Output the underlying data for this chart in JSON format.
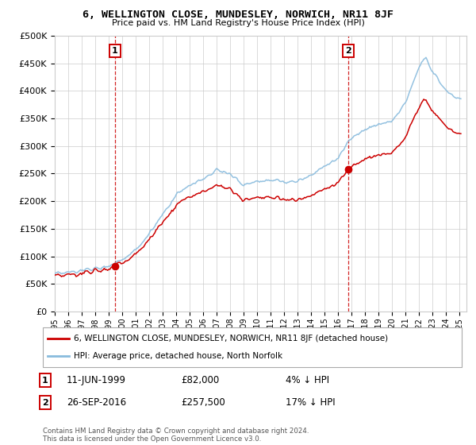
{
  "title": "6, WELLINGTON CLOSE, MUNDESLEY, NORWICH, NR11 8JF",
  "subtitle": "Price paid vs. HM Land Registry's House Price Index (HPI)",
  "ylabel_ticks": [
    "£0",
    "£50K",
    "£100K",
    "£150K",
    "£200K",
    "£250K",
    "£300K",
    "£350K",
    "£400K",
    "£450K",
    "£500K"
  ],
  "ylim": [
    0,
    500000
  ],
  "xlim_start": 1995.0,
  "xlim_end": 2025.5,
  "legend_line1": "6, WELLINGTON CLOSE, MUNDESLEY, NORWICH, NR11 8JF (detached house)",
  "legend_line2": "HPI: Average price, detached house, North Norfolk",
  "annotation1_label": "1",
  "annotation1_date": "11-JUN-1999",
  "annotation1_price": "£82,000",
  "annotation1_hpi": "4% ↓ HPI",
  "annotation2_label": "2",
  "annotation2_date": "26-SEP-2016",
  "annotation2_price": "£257,500",
  "annotation2_hpi": "17% ↓ HPI",
  "footer": "Contains HM Land Registry data © Crown copyright and database right 2024.\nThis data is licensed under the Open Government Licence v3.0.",
  "sale_color": "#cc0000",
  "hpi_color": "#88bbdd",
  "sale_marker_color": "#cc0000",
  "dashed_line_color": "#cc0000",
  "background_color": "#ffffff",
  "grid_color": "#cccccc",
  "sale1_x": 1999.44,
  "sale1_y": 82000,
  "sale2_x": 2016.73,
  "sale2_y": 257500
}
